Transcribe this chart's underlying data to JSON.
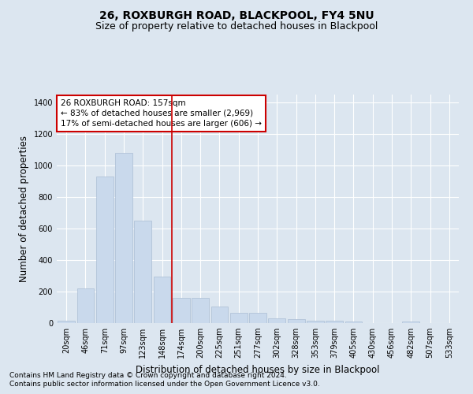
{
  "title": "26, ROXBURGH ROAD, BLACKPOOL, FY4 5NU",
  "subtitle": "Size of property relative to detached houses in Blackpool",
  "xlabel": "Distribution of detached houses by size in Blackpool",
  "ylabel": "Number of detached properties",
  "categories": [
    "20sqm",
    "46sqm",
    "71sqm",
    "97sqm",
    "123sqm",
    "148sqm",
    "174sqm",
    "200sqm",
    "225sqm",
    "251sqm",
    "277sqm",
    "302sqm",
    "328sqm",
    "353sqm",
    "379sqm",
    "405sqm",
    "430sqm",
    "456sqm",
    "482sqm",
    "507sqm",
    "533sqm"
  ],
  "values": [
    15,
    220,
    930,
    1080,
    650,
    295,
    160,
    160,
    105,
    65,
    65,
    30,
    25,
    15,
    15,
    10,
    0,
    0,
    10,
    0,
    0
  ],
  "bar_color": "#c9d9ec",
  "bar_edge_color": "#aabdd4",
  "vline_x": 5.5,
  "vline_color": "#cc0000",
  "annotation_title": "26 ROXBURGH ROAD: 157sqm",
  "annotation_line1": "← 83% of detached houses are smaller (2,969)",
  "annotation_line2": "17% of semi-detached houses are larger (606) →",
  "annotation_box_color": "#ffffff",
  "annotation_border_color": "#cc0000",
  "footnote1": "Contains HM Land Registry data © Crown copyright and database right 2024.",
  "footnote2": "Contains public sector information licensed under the Open Government Licence v3.0.",
  "ylim": [
    0,
    1450
  ],
  "yticks": [
    0,
    200,
    400,
    600,
    800,
    1000,
    1200,
    1400
  ],
  "bg_color": "#dce6f0",
  "plot_bg_color": "#dce6f0",
  "grid_color": "#ffffff",
  "title_fontsize": 10,
  "subtitle_fontsize": 9,
  "axis_label_fontsize": 8.5,
  "tick_fontsize": 7,
  "annotation_fontsize": 7.5,
  "footnote_fontsize": 6.5
}
